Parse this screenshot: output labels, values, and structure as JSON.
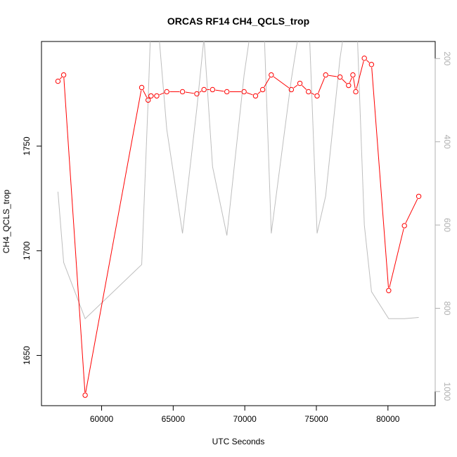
{
  "chart_data": {
    "type": "line",
    "title": "ORCAS RF14 CH4_QCLS_trop",
    "xlabel": "UTC Seconds",
    "ylabel": "CH4_QCLS_trop",
    "xlim": [
      55800,
      83300
    ],
    "ylim": [
      1626,
      1800
    ],
    "xticks": [
      60000,
      65000,
      70000,
      75000,
      80000
    ],
    "yticks": [
      1650,
      1700,
      1750
    ],
    "y2lim": [
      1034,
      159
    ],
    "y2ticks": [
      200,
      400,
      600,
      800,
      1000
    ],
    "colors": {
      "primary": "#ff0000",
      "secondary": "#bebebe",
      "axis": "#000000",
      "secondary_axis": "#b0b0b0"
    },
    "series": [
      {
        "axis": "left",
        "color": "#ff0000",
        "markers": "open-circle",
        "x": [
          56950,
          57350,
          58850,
          62800,
          63250,
          63450,
          63850,
          64550,
          65650,
          66650,
          67150,
          67750,
          68750,
          69950,
          70750,
          71250,
          71850,
          73250,
          73850,
          74450,
          75050,
          75650,
          76650,
          77250,
          77550,
          77750,
          78350,
          78850,
          80050,
          81150,
          82150
        ],
        "y": [
          1781,
          1784,
          1631,
          1778,
          1772,
          1774,
          1774,
          1776,
          1776,
          1775,
          1777,
          1777,
          1776,
          1776,
          1774,
          1777,
          1784,
          1777,
          1780,
          1776,
          1774,
          1784,
          1783,
          1779,
          1784,
          1776,
          1792,
          1789,
          1681,
          1712,
          1726
        ]
      },
      {
        "axis": "right",
        "color": "#bebebe",
        "markers": "none",
        "x": [
          56950,
          57350,
          58850,
          62800,
          63250,
          63450,
          63850,
          64550,
          65650,
          66650,
          67150,
          67750,
          68750,
          69950,
          70750,
          71250,
          71850,
          73250,
          73850,
          74450,
          75050,
          75650,
          76650,
          77250,
          77550,
          77750,
          78350,
          78850,
          80050,
          81150,
          82150
        ],
        "y": [
          520,
          690,
          825,
          695,
          300,
          105,
          80,
          370,
          620,
          320,
          150,
          460,
          625,
          240,
          50,
          30,
          620,
          250,
          120,
          80,
          620,
          530,
          200,
          60,
          20,
          40,
          600,
          760,
          825,
          825,
          822
        ]
      }
    ]
  }
}
